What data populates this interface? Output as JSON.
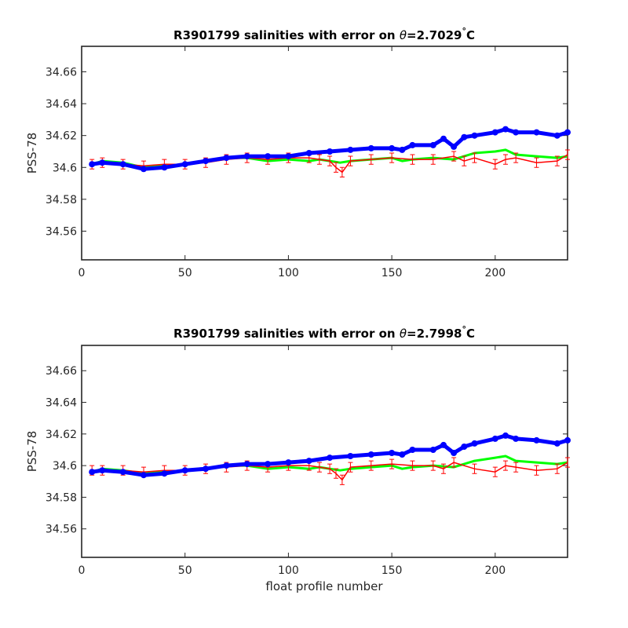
{
  "chart_data": [
    {
      "type": "line",
      "title_prefix": "R3901799 salinities with error on ",
      "title_symbol": "θ",
      "title_value": "=2.7029",
      "title_degree": "°",
      "title_unit": "C",
      "xlabel": "",
      "ylabel": "PSS-78",
      "xlim": [
        0,
        235
      ],
      "ylim": [
        34.542,
        34.676
      ],
      "xticks": [
        0,
        50,
        100,
        150,
        200
      ],
      "xtick_labels": [
        "0",
        "50",
        "100",
        "150",
        "200"
      ],
      "yticks": [
        34.56,
        34.58,
        34.6,
        34.62,
        34.64,
        34.66
      ],
      "ytick_labels": [
        "34.56",
        "34.58",
        "34.6",
        "34.62",
        "34.64",
        "34.66"
      ],
      "series": [
        {
          "color": "#00ff00",
          "style": "line",
          "x": [
            5,
            10,
            20,
            30,
            40,
            50,
            60,
            70,
            80,
            90,
            100,
            110,
            115,
            120,
            125,
            130,
            140,
            150,
            155,
            160,
            170,
            180,
            185,
            190,
            200,
            205,
            210,
            220,
            230,
            235
          ],
          "values": [
            34.602,
            34.604,
            34.603,
            34.6,
            34.601,
            34.602,
            34.604,
            34.606,
            34.606,
            34.604,
            34.605,
            34.604,
            34.605,
            34.604,
            34.603,
            34.604,
            34.605,
            34.606,
            34.604,
            34.605,
            34.606,
            34.605,
            34.607,
            34.609,
            34.61,
            34.611,
            34.608,
            34.607,
            34.606,
            34.607
          ]
        },
        {
          "color": "#ff0000",
          "style": "errorbar",
          "error": 0.003,
          "x": [
            5,
            10,
            20,
            30,
            40,
            50,
            60,
            70,
            80,
            90,
            100,
            110,
            115,
            120,
            123,
            126,
            130,
            140,
            150,
            160,
            170,
            180,
            185,
            190,
            200,
            205,
            210,
            220,
            230,
            235
          ],
          "values": [
            34.602,
            34.603,
            34.602,
            34.601,
            34.602,
            34.602,
            34.603,
            34.605,
            34.606,
            34.605,
            34.606,
            34.606,
            34.605,
            34.604,
            34.6,
            34.597,
            34.604,
            34.605,
            34.606,
            34.605,
            34.605,
            34.607,
            34.604,
            34.606,
            34.602,
            34.605,
            34.606,
            34.603,
            34.604,
            34.608
          ]
        },
        {
          "color": "#0000ff",
          "style": "markers",
          "x": [
            5,
            10,
            20,
            30,
            40,
            50,
            60,
            70,
            80,
            90,
            100,
            110,
            120,
            130,
            140,
            150,
            155,
            160,
            170,
            175,
            180,
            185,
            190,
            200,
            205,
            210,
            220,
            230,
            235
          ],
          "values": [
            34.602,
            34.603,
            34.602,
            34.599,
            34.6,
            34.602,
            34.604,
            34.606,
            34.607,
            34.607,
            34.607,
            34.609,
            34.61,
            34.611,
            34.612,
            34.612,
            34.611,
            34.614,
            34.614,
            34.618,
            34.613,
            34.619,
            34.62,
            34.622,
            34.624,
            34.622,
            34.622,
            34.62,
            34.622
          ]
        }
      ]
    },
    {
      "type": "line",
      "title_prefix": "R3901799 salinities with error on ",
      "title_symbol": "θ",
      "title_value": "=2.7998",
      "title_degree": "°",
      "title_unit": "C",
      "xlabel": "float profile number",
      "ylabel": "PSS-78",
      "xlim": [
        0,
        235
      ],
      "ylim": [
        34.542,
        34.676
      ],
      "xticks": [
        0,
        50,
        100,
        150,
        200
      ],
      "xtick_labels": [
        "0",
        "50",
        "100",
        "150",
        "200"
      ],
      "yticks": [
        34.56,
        34.58,
        34.6,
        34.62,
        34.64,
        34.66
      ],
      "ytick_labels": [
        "34.56",
        "34.58",
        "34.6",
        "34.62",
        "34.64",
        "34.66"
      ],
      "series": [
        {
          "color": "#00ff00",
          "style": "line",
          "x": [
            5,
            10,
            20,
            30,
            40,
            50,
            60,
            70,
            80,
            90,
            100,
            110,
            115,
            120,
            125,
            130,
            140,
            150,
            155,
            160,
            170,
            180,
            185,
            190,
            200,
            205,
            210,
            220,
            230,
            235
          ],
          "values": [
            34.596,
            34.598,
            34.597,
            34.595,
            34.596,
            34.597,
            34.598,
            34.6,
            34.6,
            34.598,
            34.599,
            34.598,
            34.599,
            34.598,
            34.597,
            34.598,
            34.599,
            34.6,
            34.598,
            34.599,
            34.6,
            34.599,
            34.601,
            34.603,
            34.605,
            34.606,
            34.603,
            34.602,
            34.601,
            34.602
          ]
        },
        {
          "color": "#ff0000",
          "style": "errorbar",
          "error": 0.003,
          "x": [
            5,
            10,
            20,
            30,
            40,
            50,
            60,
            70,
            80,
            90,
            100,
            110,
            115,
            120,
            123,
            126,
            130,
            140,
            150,
            160,
            170,
            175,
            180,
            190,
            200,
            205,
            210,
            220,
            230,
            235
          ],
          "values": [
            34.597,
            34.597,
            34.597,
            34.596,
            34.597,
            34.597,
            34.598,
            34.599,
            34.6,
            34.599,
            34.6,
            34.6,
            34.599,
            34.598,
            34.595,
            34.591,
            34.599,
            34.6,
            34.601,
            34.6,
            34.6,
            34.598,
            34.602,
            34.598,
            34.596,
            34.6,
            34.599,
            34.597,
            34.598,
            34.602
          ]
        },
        {
          "color": "#0000ff",
          "style": "markers",
          "x": [
            5,
            10,
            20,
            30,
            40,
            50,
            60,
            70,
            80,
            90,
            100,
            110,
            120,
            130,
            140,
            150,
            155,
            160,
            170,
            175,
            180,
            185,
            190,
            200,
            205,
            210,
            220,
            230,
            235
          ],
          "values": [
            34.596,
            34.597,
            34.596,
            34.594,
            34.595,
            34.597,
            34.598,
            34.6,
            34.601,
            34.601,
            34.602,
            34.603,
            34.605,
            34.606,
            34.607,
            34.608,
            34.607,
            34.61,
            34.61,
            34.613,
            34.608,
            34.612,
            34.614,
            34.617,
            34.619,
            34.617,
            34.616,
            34.614,
            34.616
          ]
        }
      ]
    }
  ]
}
